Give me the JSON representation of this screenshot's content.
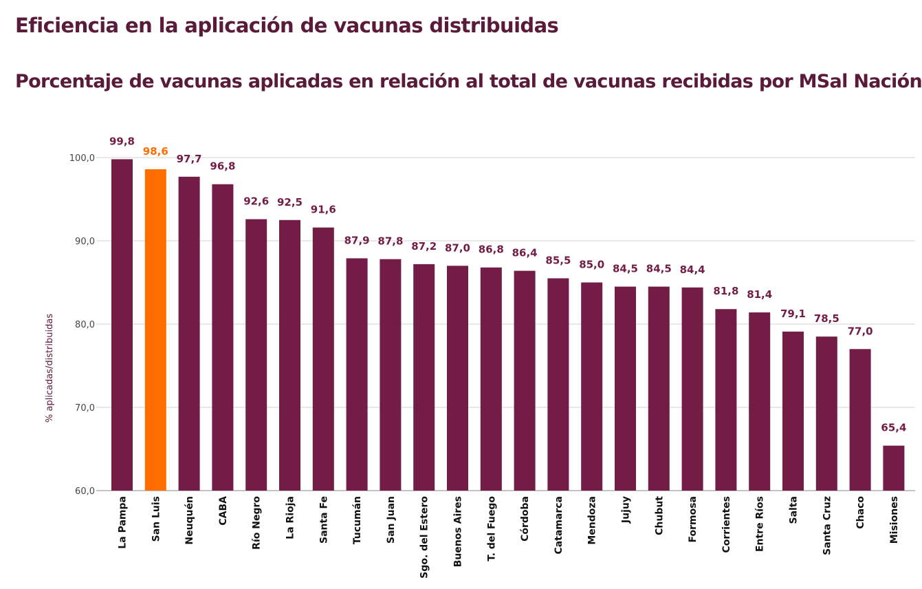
{
  "title": "Eficiencia en la aplicación de vacunas distribuidas",
  "subtitle": "Porcentaje de vacunas aplicadas en relación al total de vacunas recibidas por MSal Nación",
  "colors": {
    "bar": "#721c46",
    "highlight": "#ff6d00",
    "label": "#721c46",
    "highlight_label": "#ff6d00",
    "grid": "#d0d0d0",
    "axis": "#444444"
  },
  "chart_data": {
    "type": "bar",
    "title": "",
    "xlabel": "",
    "ylabel": "% aplicadas/distribuidas",
    "ylim": [
      60,
      100
    ],
    "yticks": [
      60,
      70,
      80,
      90,
      100
    ],
    "ytick_labels": [
      "60,0",
      "70,0",
      "80,0",
      "90,0",
      "100,0"
    ],
    "grid": true,
    "categories": [
      "La Pampa",
      "San Luis",
      "Neuquén",
      "CABA",
      "Río Negro",
      "La Rioja",
      "Santa Fe",
      "Tucumán",
      "San Juan",
      "Sgo. del Estero",
      "Buenos Aires",
      "T. del Fuego",
      "Córdoba",
      "Catamarca",
      "Mendoza",
      "Jujuy",
      "Chubut",
      "Formosa",
      "Corrientes",
      "Entre Ríos",
      "Salta",
      "Santa Cruz",
      "Chaco",
      "Misiones"
    ],
    "values": [
      99.8,
      98.6,
      97.7,
      96.8,
      92.6,
      92.5,
      91.6,
      87.9,
      87.8,
      87.2,
      87.0,
      86.8,
      86.4,
      85.5,
      85.0,
      84.5,
      84.5,
      84.4,
      81.8,
      81.4,
      79.1,
      78.5,
      77.0,
      65.4
    ],
    "value_labels": [
      "99,8",
      "98,6",
      "97,7",
      "96,8",
      "92,6",
      "92,5",
      "91,6",
      "87,9",
      "87,8",
      "87,2",
      "87,0",
      "86,8",
      "86,4",
      "85,5",
      "85,0",
      "84,5",
      "84,5",
      "84,4",
      "81,8",
      "81,4",
      "79,1",
      "78,5",
      "77,0",
      "65,4"
    ],
    "highlight": "San Luis"
  }
}
